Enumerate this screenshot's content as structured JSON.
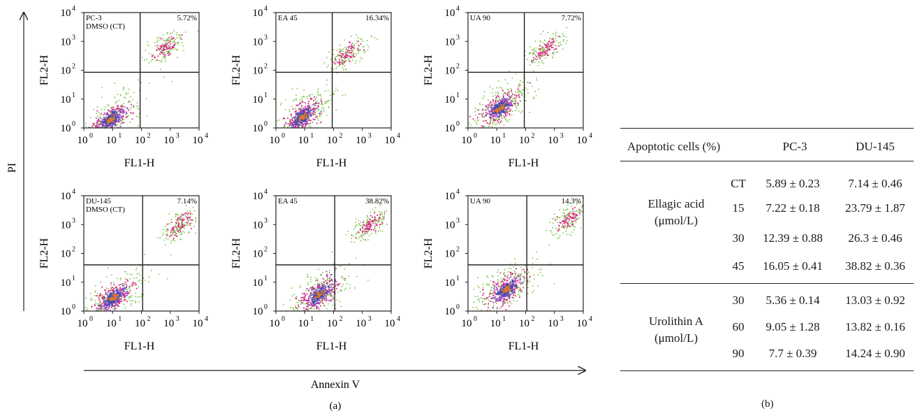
{
  "figure": {
    "y_axis_label": "PI",
    "x_axis_label": "Annexin V",
    "caption_a": "(a)",
    "caption_b": "(b)"
  },
  "chart_data": [
    {
      "type": "scatter",
      "panel": "PC-3 DMSO",
      "label_line1": "PC-3",
      "label_line2": "DMSO (CT)",
      "percent": "5.72%",
      "xlabel": "FL1-H",
      "ylabel": "FL2-H",
      "xlim": [
        1,
        10000
      ],
      "ylim": [
        1,
        10000
      ],
      "log_scale": true,
      "x_ticks": [
        "10",
        "10",
        "10",
        "10",
        "10"
      ],
      "tick_exponents": [
        "0",
        "1",
        "2",
        "3",
        "4"
      ],
      "quadrant_x": 90,
      "quadrant_y": 85,
      "main_cluster": [
        8,
        2
      ],
      "upper_cluster": [
        700,
        650
      ]
    },
    {
      "type": "scatter",
      "panel": "PC-3 EA 45",
      "label_line1": "EA 45",
      "label_line2": "",
      "percent": "16.34%",
      "xlabel": "FL1-H",
      "ylabel": "FL2-H",
      "xlim": [
        1,
        10000
      ],
      "ylim": [
        1,
        10000
      ],
      "log_scale": true,
      "quadrant_x": 90,
      "quadrant_y": 85,
      "main_cluster": [
        8,
        2.5
      ],
      "upper_cluster": [
        300,
        400
      ]
    },
    {
      "type": "scatter",
      "panel": "PC-3 UA 90",
      "label_line1": "UA 90",
      "label_line2": "",
      "percent": "7.72%",
      "xlabel": "FL1-H",
      "ylabel": "FL2-H",
      "xlim": [
        1,
        10000
      ],
      "ylim": [
        1,
        10000
      ],
      "log_scale": true,
      "quadrant_x": 90,
      "quadrant_y": 85,
      "main_cluster": [
        12,
        5
      ],
      "upper_cluster": [
        400,
        500
      ]
    },
    {
      "type": "scatter",
      "panel": "DU-145 DMSO",
      "label_line1": "DU-145",
      "label_line2": "DMSO (CT)",
      "percent": "7.14%",
      "xlabel": "FL1-H",
      "ylabel": "FL2-H",
      "xlim": [
        1,
        10000
      ],
      "ylim": [
        1,
        10000
      ],
      "log_scale": true,
      "quadrant_x": 110,
      "quadrant_y": 40,
      "main_cluster": [
        10,
        3
      ],
      "upper_cluster": [
        2000,
        1000
      ]
    },
    {
      "type": "scatter",
      "panel": "DU-145 EA 45",
      "label_line1": "EA 45",
      "label_line2": "",
      "percent": "38.82%",
      "xlabel": "FL1-H",
      "ylabel": "FL2-H",
      "xlim": [
        1,
        10000
      ],
      "ylim": [
        1,
        10000
      ],
      "log_scale": true,
      "quadrant_x": 110,
      "quadrant_y": 40,
      "main_cluster": [
        30,
        4
      ],
      "upper_cluster": [
        1800,
        1000
      ]
    },
    {
      "type": "scatter",
      "panel": "DU-145 UA 90",
      "label_line1": "UA 90",
      "label_line2": "",
      "percent": "14.3%",
      "xlabel": "FL1-H",
      "ylabel": "FL2-H",
      "xlim": [
        1,
        10000
      ],
      "ylim": [
        1,
        10000
      ],
      "log_scale": true,
      "quadrant_x": 110,
      "quadrant_y": 40,
      "main_cluster": [
        20,
        6
      ],
      "upper_cluster": [
        3000,
        1500
      ]
    },
    {
      "type": "table",
      "header": {
        "label": "Apoptotic cells (%)",
        "col1": "PC-3",
        "col2": "DU-145"
      },
      "ct_row": {
        "dose": "CT",
        "pc3": "5.89 ± 0.23",
        "du145": "7.14 ± 0.46"
      },
      "groups": [
        {
          "name_line1": "Ellagic acid",
          "name_line2": "(μmol/L)",
          "rows": [
            {
              "dose": "15",
              "pc3": "7.22 ± 0.18",
              "du145": "23.79 ± 1.87"
            },
            {
              "dose": "30",
              "pc3": "12.39 ± 0.88",
              "du145": "26.3 ± 0.46"
            },
            {
              "dose": "45",
              "pc3": "16.05 ± 0.41",
              "du145": "38.82 ± 0.36"
            }
          ]
        },
        {
          "name_line1": "Urolithin A",
          "name_line2": "(μmol/L)",
          "rows": [
            {
              "dose": "30",
              "pc3": "5.36 ± 0.14",
              "du145": "13.03 ± 0.92"
            },
            {
              "dose": "60",
              "pc3": "9.05 ± 1.28",
              "du145": "13.82 ± 0.16"
            },
            {
              "dose": "90",
              "pc3": "7.7 ± 0.39",
              "du145": "14.24 ± 0.90"
            }
          ]
        }
      ]
    }
  ]
}
